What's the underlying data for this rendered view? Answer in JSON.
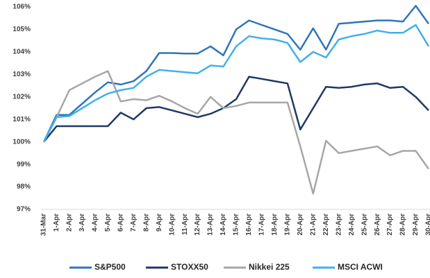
{
  "chart_data": {
    "type": "line",
    "categories": [
      "31-Mar",
      "1-Apr",
      "2-Apr",
      "3-Apr",
      "4-Apr",
      "5-Apr",
      "6-Apr",
      "7-Apr",
      "8-Apr",
      "9-Apr",
      "10-Apr",
      "11-Apr",
      "12-Apr",
      "13-Apr",
      "14-Apr",
      "15-Apr",
      "16-Apr",
      "17-Apr",
      "18-Apr",
      "19-Apr",
      "20-Apr",
      "21-Apr",
      "22-Apr",
      "23-Apr",
      "24-Apr",
      "25-Apr",
      "26-Apr",
      "27-Apr",
      "28-Apr",
      "29-Apr",
      "30-Apr"
    ],
    "series": [
      {
        "name": "S&P500",
        "color": "#2e75b6",
        "values": [
          100,
          101.2,
          101.2,
          101.7,
          102.2,
          102.65,
          102.55,
          102.7,
          103.15,
          103.95,
          103.95,
          103.93,
          103.93,
          104.25,
          103.85,
          105.0,
          105.4,
          105.2,
          105.0,
          104.8,
          104.1,
          105.05,
          104.1,
          105.25,
          105.3,
          105.35,
          105.4,
          105.4,
          105.35,
          106.05,
          105.25
        ]
      },
      {
        "name": "STOXX50",
        "color": "#1f3864",
        "values": [
          100,
          100.7,
          100.7,
          100.7,
          100.7,
          100.7,
          101.3,
          101.0,
          101.5,
          101.55,
          101.4,
          101.25,
          101.1,
          101.25,
          101.5,
          101.9,
          102.9,
          102.8,
          102.7,
          102.6,
          100.55,
          101.5,
          102.45,
          102.4,
          102.45,
          102.55,
          102.6,
          102.4,
          102.45,
          102.0,
          101.4
        ]
      },
      {
        "name": "Nikkei 225",
        "color": "#a6a6a6",
        "values": [
          100,
          101.1,
          102.3,
          102.6,
          102.9,
          103.15,
          101.8,
          101.9,
          101.85,
          102.05,
          101.8,
          101.5,
          101.25,
          102.0,
          101.5,
          101.6,
          101.75,
          101.75,
          101.75,
          101.75,
          99.8,
          97.7,
          100.05,
          99.5,
          99.6,
          99.7,
          99.8,
          99.4,
          99.6,
          99.6,
          98.8
        ]
      },
      {
        "name": "MSCI ACWI",
        "color": "#41b0e8",
        "values": [
          100,
          101.1,
          101.15,
          101.5,
          101.85,
          102.15,
          102.3,
          102.4,
          102.9,
          103.2,
          103.15,
          103.1,
          103.05,
          103.4,
          103.35,
          104.25,
          104.7,
          104.6,
          104.55,
          104.4,
          103.55,
          104.0,
          103.75,
          104.55,
          104.7,
          104.8,
          104.95,
          104.85,
          104.85,
          105.2,
          104.25
        ]
      }
    ],
    "ylim": [
      97,
      106
    ],
    "yticks": [
      {
        "value": 97,
        "label": "97%"
      },
      {
        "value": 98,
        "label": "98%"
      },
      {
        "value": 99,
        "label": "99%"
      },
      {
        "value": 100,
        "label": "100%"
      },
      {
        "value": 101,
        "label": "101%"
      },
      {
        "value": 102,
        "label": "102%"
      },
      {
        "value": 103,
        "label": "103%"
      },
      {
        "value": 104,
        "label": "104%"
      },
      {
        "value": 105,
        "label": "105%"
      },
      {
        "value": 106,
        "label": "106%"
      }
    ],
    "grid": false,
    "legend": "bottom"
  }
}
